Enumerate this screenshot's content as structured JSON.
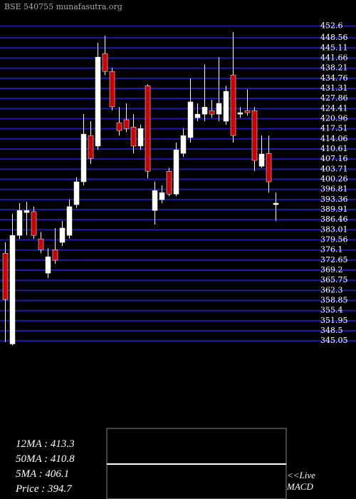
{
  "chart_data": {
    "type": "candlestick",
    "title": "BSE 540755 munafasutra.org",
    "ylim": [
      343.4,
      461.5
    ],
    "yticks": [
      452.6,
      448.56,
      445.11,
      441.66,
      438.21,
      434.76,
      431.31,
      427.86,
      424.41,
      420.96,
      417.51,
      414.06,
      410.61,
      407.16,
      403.71,
      400.26,
      396.81,
      393.36,
      389.91,
      386.46,
      383.01,
      379.56,
      376.1,
      372.65,
      369.2,
      365.75,
      362.3,
      358.85,
      355.4,
      351.95,
      348.5,
      345.05
    ],
    "grid": true,
    "up_color": "#ffffff",
    "down_color": "#cc0000",
    "grid_color": "#1c1ca8",
    "open": [
      375.0,
      344.0,
      381.1,
      388.9,
      389.2,
      379.9,
      368.2,
      376.2,
      378.7,
      381.1,
      391.6,
      399.4,
      415.2,
      411.6,
      443.2,
      437.1,
      419.6,
      420.6,
      418.1,
      411.6,
      432.2,
      389.6,
      393.3,
      403.0,
      395.2,
      409.1,
      414.5,
      421.3,
      422.5,
      423.7,
      422.5,
      420.1,
      435.9,
      422.5,
      423.7,
      423.7,
      404.7,
      409.1,
      391.6
    ],
    "high": [
      378.7,
      388.4,
      392.1,
      392.6,
      390.9,
      382.3,
      376.7,
      383.6,
      386.0,
      393.4,
      401.0,
      422.5,
      420.1,
      446.9,
      449.3,
      438.3,
      424.9,
      426.2,
      422.5,
      418.9,
      432.7,
      399.4,
      398.2,
      404.2,
      412.8,
      417.6,
      434.7,
      426.2,
      439.5,
      427.4,
      442.0,
      432.2,
      450.5,
      424.9,
      431.0,
      424.9,
      415.2,
      415.2,
      395.7
    ],
    "low": [
      344.6,
      343.5,
      379.9,
      381.1,
      379.9,
      375.0,
      366.5,
      371.4,
      377.5,
      380.0,
      390.5,
      398.2,
      405.5,
      410.3,
      435.9,
      423.8,
      415.2,
      416.4,
      409.1,
      410.3,
      400.6,
      384.8,
      392.1,
      394.5,
      394.5,
      407.9,
      412.8,
      420.1,
      420.1,
      421.3,
      420.1,
      418.9,
      412.8,
      421.3,
      422.0,
      403.0,
      404.2,
      395.7,
      386.0
    ],
    "close": [
      359.2,
      381.1,
      389.6,
      389.6,
      381.1,
      376.2,
      373.8,
      372.6,
      383.6,
      390.9,
      399.4,
      415.7,
      407.4,
      442.0,
      437.1,
      425.0,
      416.9,
      417.6,
      411.6,
      417.6,
      403.0,
      396.4,
      395.7,
      395.2,
      410.3,
      415.2,
      426.7,
      422.5,
      424.9,
      422.5,
      426.2,
      430.3,
      415.2,
      423.0,
      423.0,
      406.7,
      408.9,
      399.4,
      392.1
    ],
    "annotations": [
      "12MA : 413.3",
      "50MA : 410.8",
      "5MA : 406.1",
      "Price  : 394.7",
      "<<Live",
      "MACD"
    ]
  }
}
